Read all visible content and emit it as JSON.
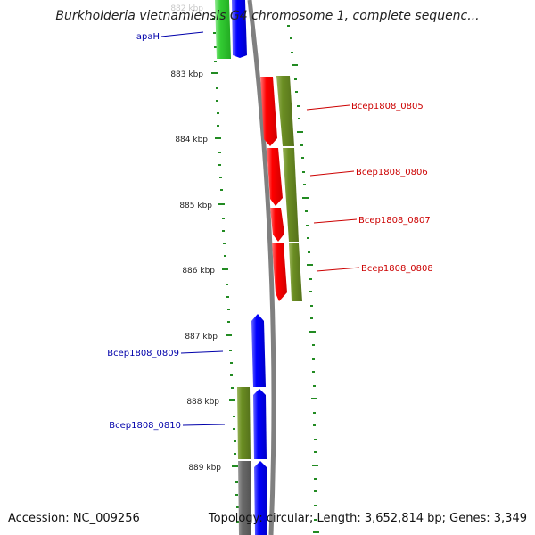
{
  "title": "Burkholderia vietnamiensis G4 chromosome 1, complete sequenc...",
  "footer": {
    "accession": "Accession: NC_009256",
    "summary": "Topology: circular; Length: 3,652,814 bp; Genes: 3,349"
  },
  "ticks": [
    "882 kbp",
    "883 kbp",
    "884 kbp",
    "885 kbp",
    "886 kbp",
    "887 kbp",
    "888 kbp",
    "889 kbp"
  ],
  "colors": {
    "forward_cds": "#0000ff",
    "reverse_cds": "#ff0000",
    "gene": "#6b8e23",
    "gene_other": "#666666",
    "ref_gene": "#33cc33",
    "backbone": "#808080",
    "tick_mark": "#228b22",
    "label_forward": "#0000aa",
    "label_reverse": "#cc0000"
  },
  "labels": {
    "apaH": "apaH",
    "l0805": "Bcep1808_0805",
    "l0806": "Bcep1808_0806",
    "l0807": "Bcep1808_0807",
    "l0808": "Bcep1808_0808",
    "l0809": "Bcep1808_0809",
    "l0810": "Bcep1808_0810"
  }
}
